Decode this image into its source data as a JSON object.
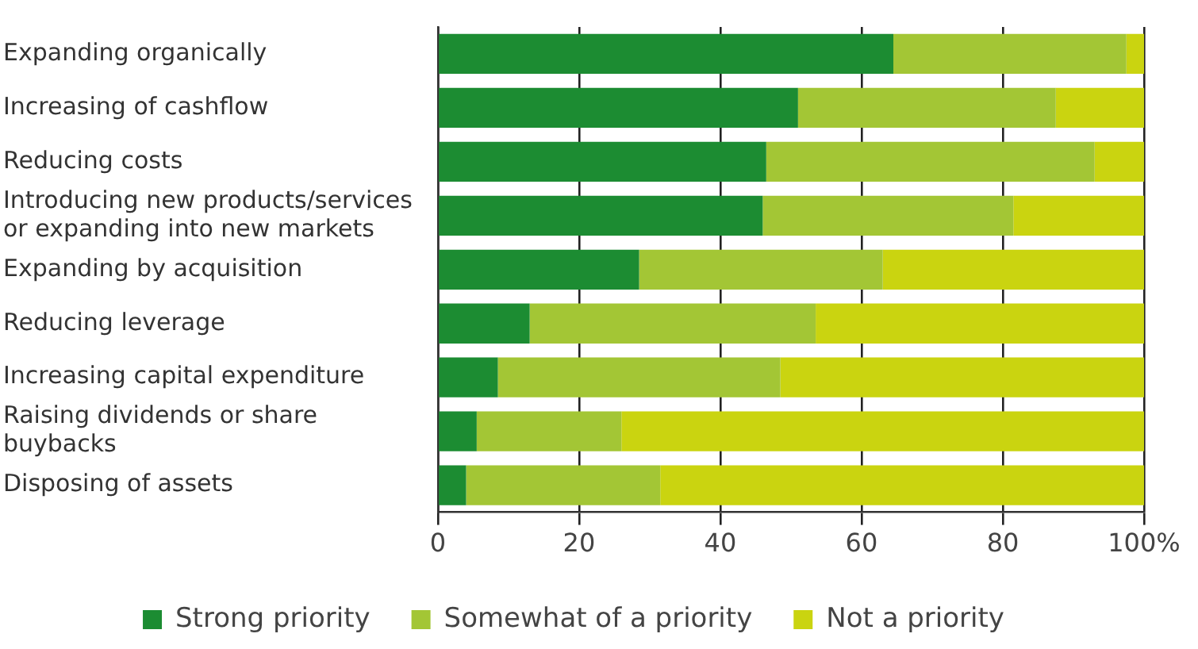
{
  "chart_data": {
    "type": "bar",
    "orientation": "horizontal",
    "stacked": true,
    "categories": [
      "Expanding organically",
      "Increasing of cashflow",
      "Reducing costs",
      "Introducing new products/services or expanding into new markets",
      "Expanding by acquisition",
      "Reducing leverage",
      "Increasing capital expenditure",
      "Raising dividends or share buybacks",
      "Disposing of assets"
    ],
    "series": [
      {
        "name": "Strong priority",
        "color": "#1c8c32",
        "values": [
          64.5,
          51,
          46.5,
          46,
          28.5,
          13,
          8.5,
          5.5,
          4
        ]
      },
      {
        "name": "Somewhat of a priority",
        "color": "#a3c635",
        "values": [
          33,
          36.5,
          46.5,
          35.5,
          34.5,
          40.5,
          40,
          20.5,
          27.5
        ]
      },
      {
        "name": "Not a priority",
        "color": "#cad410",
        "values": [
          2.5,
          12.5,
          7,
          18.5,
          37,
          46.5,
          51.5,
          74,
          68.5
        ]
      }
    ],
    "xlim": [
      0,
      100
    ],
    "xticks": [
      0,
      20,
      40,
      60,
      80,
      {
        "value": 100,
        "label": "100%"
      }
    ],
    "grid": "x",
    "legend": "bottom"
  }
}
